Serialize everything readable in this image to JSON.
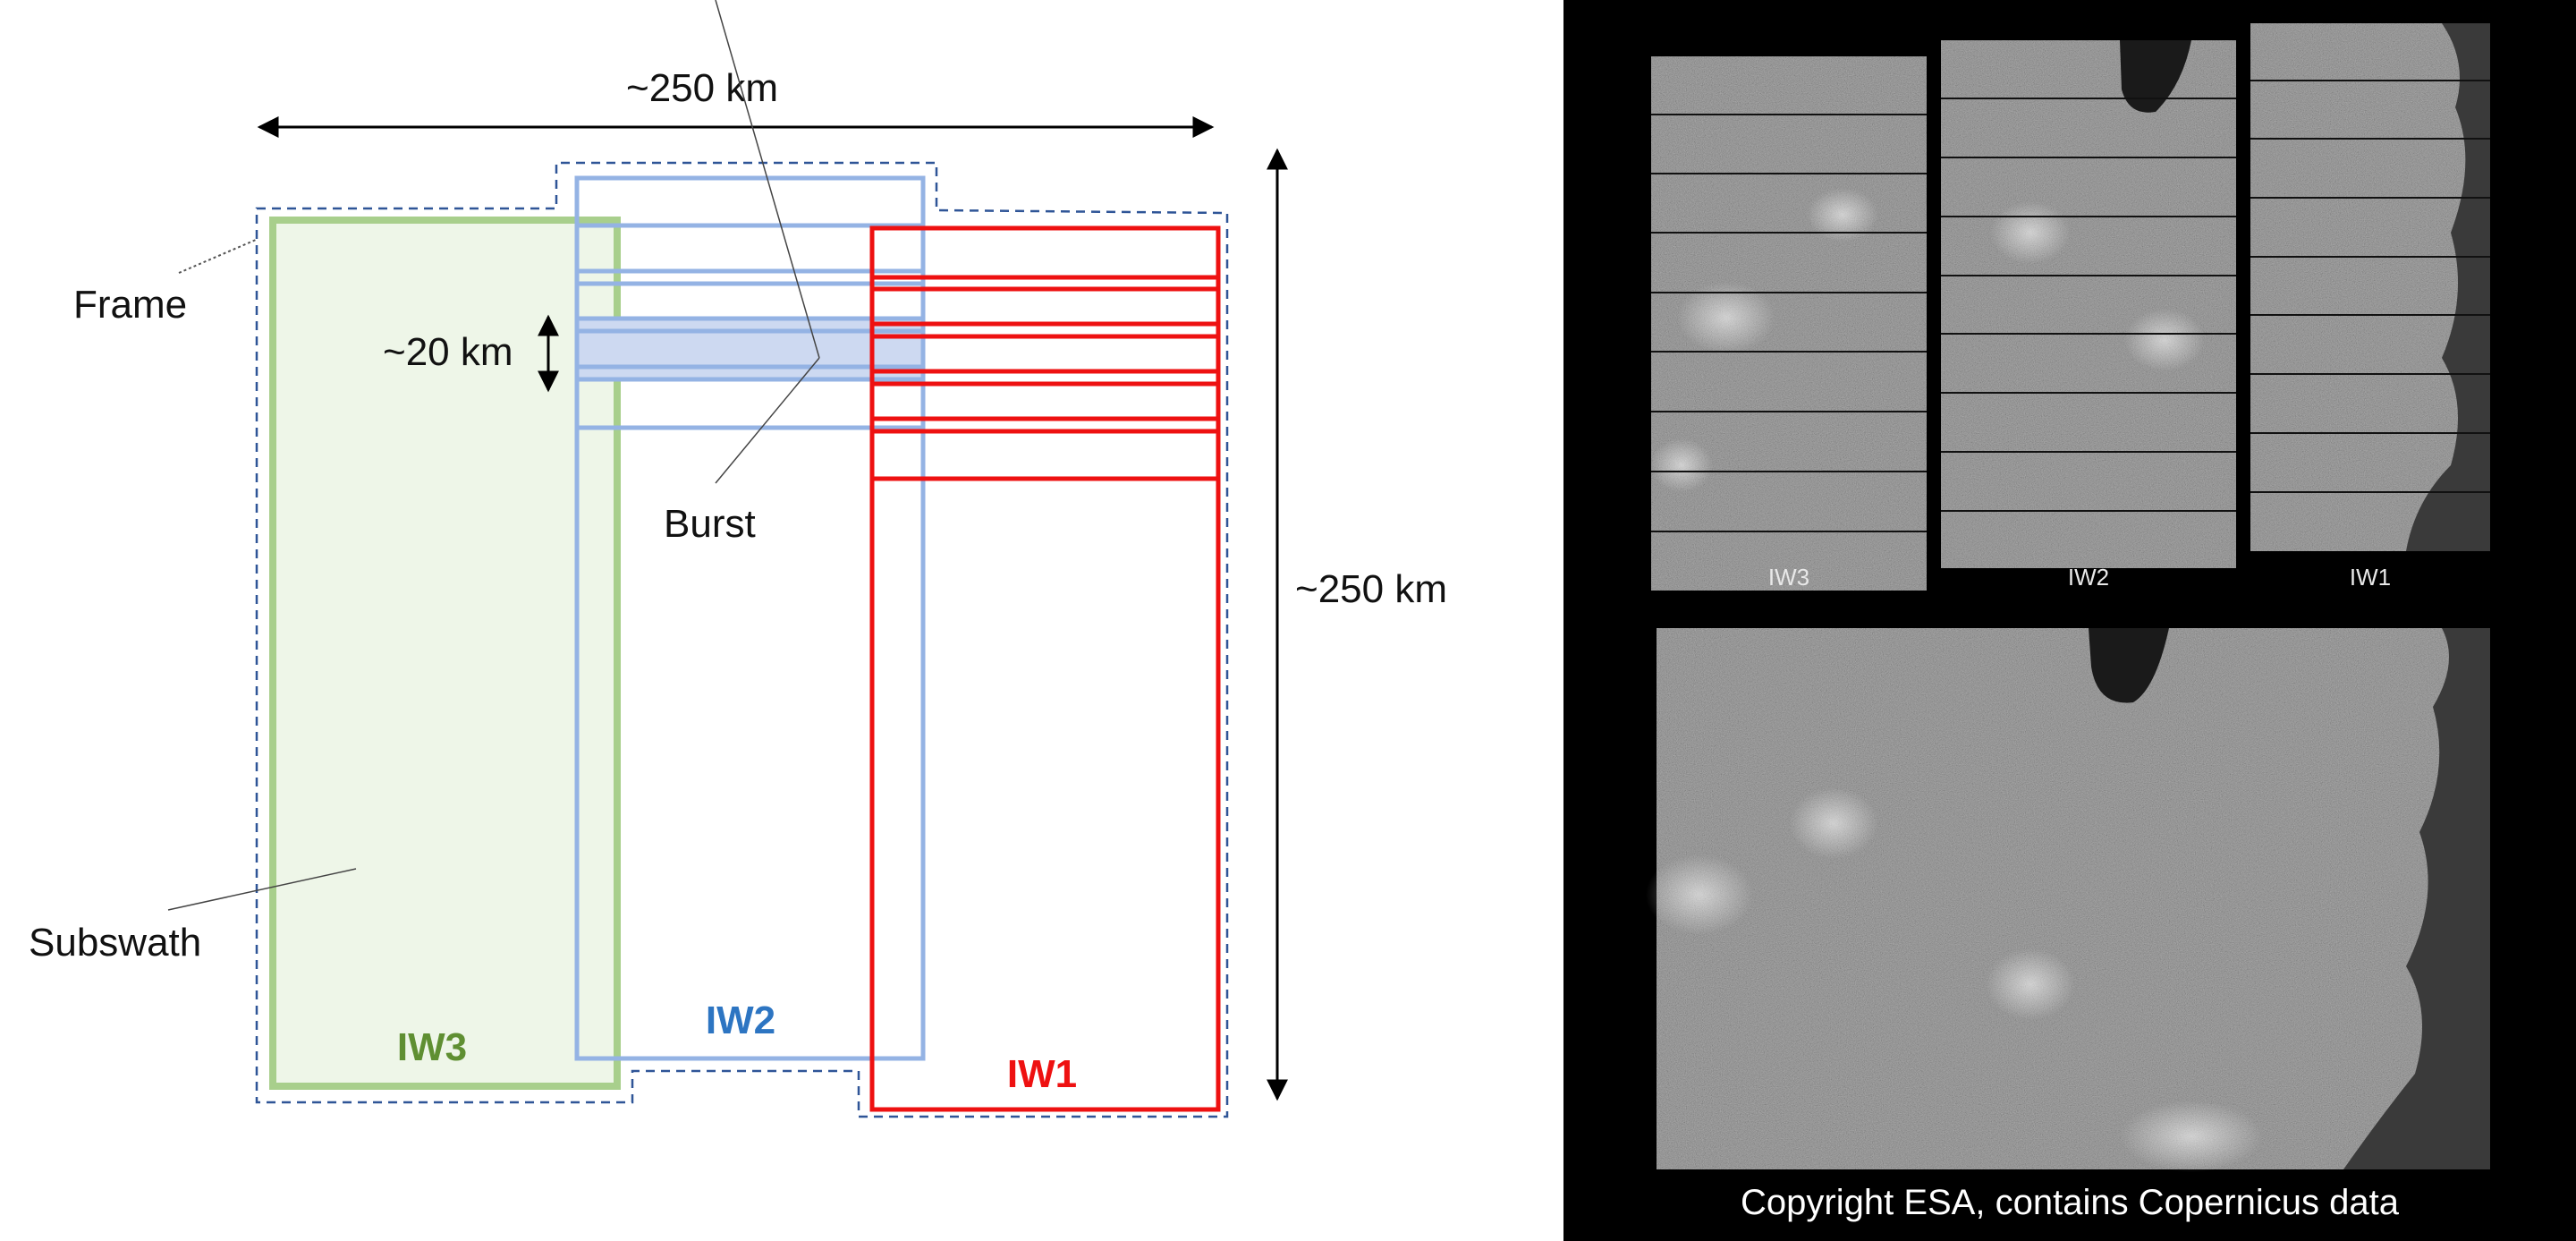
{
  "diagram": {
    "labels": {
      "width_dimension": "~250 km",
      "height_dimension": "~250 km",
      "burst_dimension": "~20 km",
      "frame": "Frame",
      "burst": "Burst",
      "subswath": "Subswath"
    },
    "subswaths": [
      {
        "name": "IW3",
        "color": "#5f8f32",
        "fill": "#eef6e8",
        "stroke": "#a8cf8c"
      },
      {
        "name": "IW2",
        "color": "#2d75c2",
        "stroke": "#94b3e4"
      },
      {
        "name": "IW1",
        "color": "#ee1111",
        "stroke": "#ee1111"
      }
    ],
    "frame_color": "#2f5597",
    "burst_highlight": "#cdd9f1"
  },
  "imagery": {
    "background": "#000000",
    "panels": [
      "IW3",
      "IW2",
      "IW1"
    ],
    "merged_label": "",
    "copyright": "Copyright ESA, contains Copernicus data"
  }
}
